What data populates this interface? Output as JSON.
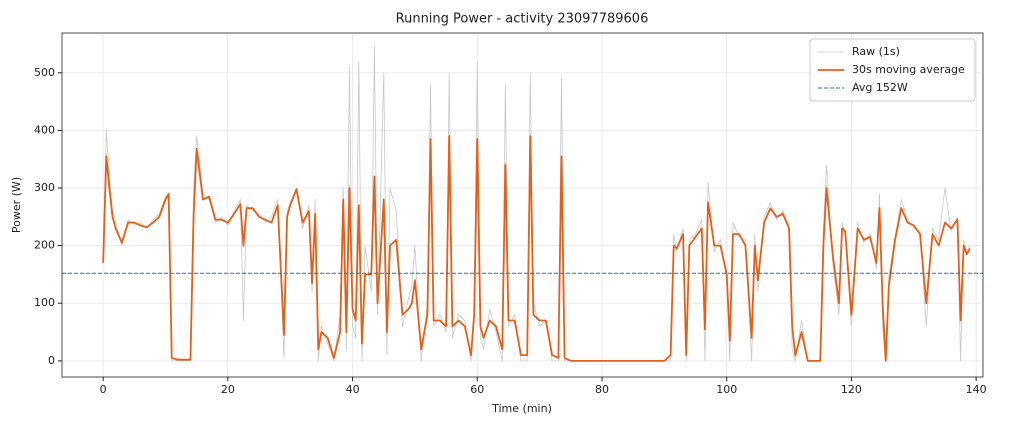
{
  "chart_data": {
    "type": "line",
    "title": "Running Power - activity 23097789606",
    "x_label": "Time (min)",
    "y_label": "Power (W)",
    "x": [
      0,
      0.5,
      1,
      1.5,
      2,
      3,
      4,
      5,
      6,
      7,
      8,
      9,
      10,
      10.5,
      11,
      12,
      14,
      14.5,
      15,
      16,
      17,
      18,
      19,
      20,
      21,
      22,
      22.5,
      23,
      24,
      25,
      26,
      27,
      28,
      29,
      29.5,
      30,
      31,
      32,
      33,
      33.5,
      34,
      34.5,
      35,
      36,
      37,
      38,
      38.5,
      39,
      39.5,
      40,
      40.5,
      41,
      41.5,
      42,
      43,
      43.5,
      44,
      45,
      45.5,
      46,
      47,
      48,
      49,
      49.5,
      50,
      51,
      52,
      52.5,
      53,
      54,
      55,
      55.5,
      56,
      57,
      58,
      59,
      59.5,
      60,
      60.5,
      61,
      62,
      63,
      64,
      64.5,
      65,
      66,
      67,
      68,
      68.5,
      69,
      70,
      71,
      72,
      73,
      73.5,
      74,
      75,
      80,
      90,
      91,
      91.5,
      92,
      93,
      93.5,
      94,
      95,
      96,
      96.5,
      97,
      98,
      99,
      100,
      100.5,
      101,
      102,
      103,
      104,
      104.5,
      105,
      106,
      107,
      108,
      109,
      110,
      110.5,
      111,
      112,
      113,
      115,
      115.5,
      116,
      117,
      118,
      118.5,
      119,
      120,
      121,
      122,
      123,
      124,
      124.5,
      125,
      125.5,
      126,
      127,
      128,
      129,
      130,
      131,
      132,
      133,
      134,
      135,
      136,
      137,
      137.5,
      138,
      138.5,
      139
    ],
    "series": [
      {
        "name": "Raw (1s)",
        "color": "#c8c8c8",
        "width": 0.8,
        "values": [
          170,
          400,
          320,
          260,
          240,
          200,
          245,
          235,
          240,
          230,
          245,
          255,
          285,
          290,
          0,
          0,
          0,
          300,
          390,
          290,
          280,
          240,
          250,
          235,
          260,
          280,
          70,
          270,
          260,
          255,
          240,
          250,
          280,
          5,
          260,
          275,
          300,
          230,
          270,
          120,
          280,
          0,
          60,
          30,
          0,
          80,
          300,
          20,
          510,
          60,
          40,
          520,
          0,
          200,
          120,
          545,
          80,
          500,
          10,
          300,
          260,
          60,
          110,
          130,
          200,
          0,
          100,
          480,
          60,
          80,
          50,
          500,
          40,
          80,
          70,
          0,
          100,
          520,
          40,
          20,
          90,
          50,
          0,
          480,
          60,
          80,
          0,
          0,
          500,
          100,
          60,
          70,
          0,
          0,
          490,
          0,
          0,
          0,
          0,
          0,
          220,
          190,
          230,
          0,
          210,
          220,
          245,
          0,
          310,
          190,
          210,
          140,
          0,
          240,
          215,
          210,
          0,
          220,
          120,
          250,
          275,
          245,
          260,
          235,
          20,
          0,
          70,
          0,
          0,
          230,
          340,
          170,
          80,
          240,
          220,
          60,
          240,
          205,
          220,
          160,
          290,
          60,
          0,
          150,
          215,
          280,
          245,
          230,
          225,
          60,
          230,
          210,
          300,
          225,
          250,
          0,
          210,
          190,
          200
        ]
      },
      {
        "name": "30s moving average",
        "color": "#e4601a",
        "width": 1.8,
        "values": [
          170,
          355,
          300,
          250,
          230,
          205,
          240,
          240,
          235,
          232,
          240,
          250,
          280,
          290,
          5,
          2,
          2,
          250,
          368,
          280,
          285,
          245,
          245,
          240,
          255,
          272,
          200,
          265,
          265,
          250,
          245,
          240,
          270,
          45,
          250,
          270,
          298,
          240,
          260,
          135,
          255,
          20,
          50,
          40,
          5,
          50,
          280,
          50,
          300,
          90,
          70,
          270,
          30,
          150,
          150,
          320,
          100,
          280,
          50,
          200,
          210,
          80,
          90,
          100,
          140,
          20,
          80,
          385,
          70,
          70,
          60,
          390,
          60,
          70,
          60,
          10,
          80,
          385,
          60,
          40,
          70,
          60,
          20,
          340,
          70,
          70,
          10,
          10,
          390,
          80,
          70,
          70,
          10,
          5,
          355,
          5,
          0,
          0,
          0,
          10,
          200,
          195,
          220,
          10,
          200,
          215,
          230,
          55,
          275,
          200,
          200,
          150,
          35,
          220,
          220,
          200,
          40,
          200,
          140,
          240,
          265,
          250,
          255,
          230,
          60,
          10,
          50,
          0,
          0,
          200,
          300,
          185,
          100,
          230,
          225,
          80,
          230,
          210,
          215,
          170,
          265,
          100,
          0,
          130,
          210,
          265,
          240,
          235,
          220,
          100,
          220,
          200,
          240,
          230,
          245,
          70,
          200,
          185,
          195
        ]
      }
    ],
    "reference_lines": [
      {
        "name": "Avg 152W",
        "value": 152,
        "color": "#1f77b4"
      }
    ],
    "xlim": [
      -6.6,
      141.1
    ],
    "ylim": [
      -28,
      569
    ],
    "xticks": [
      0,
      20,
      40,
      60,
      80,
      100,
      120,
      140
    ],
    "yticks": [
      0,
      100,
      200,
      300,
      400,
      500
    ],
    "grid": true,
    "legend": "upper right"
  }
}
